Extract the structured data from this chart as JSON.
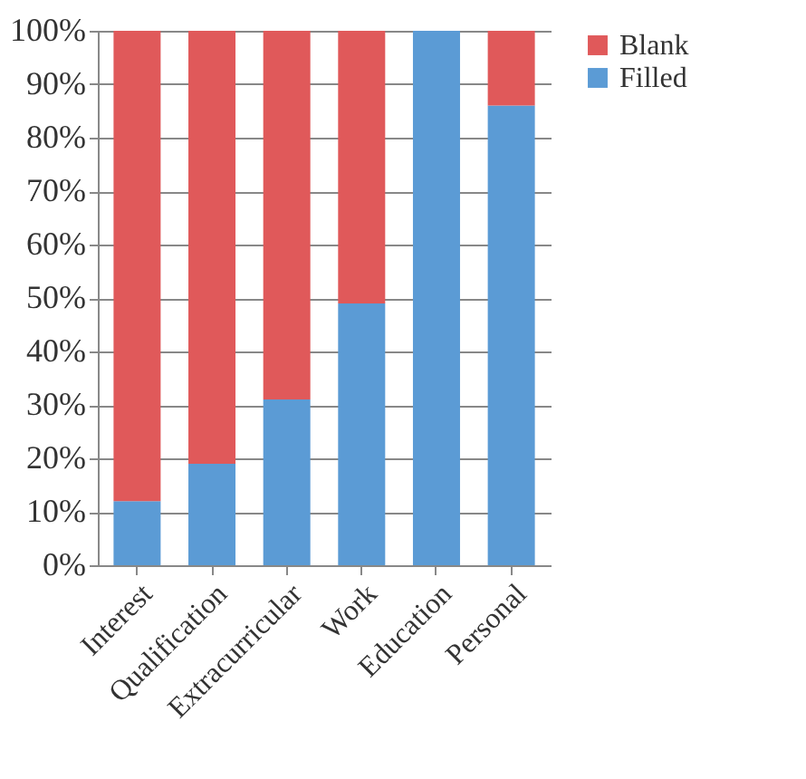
{
  "chart_data": {
    "type": "bar",
    "stacked": true,
    "categories": [
      "Interest",
      "Qualification",
      "Extracurricular",
      "Work",
      "Education",
      "Personal"
    ],
    "series": [
      {
        "name": "Filled",
        "color": "#5b9bd5",
        "values": [
          12,
          19,
          31,
          49,
          100,
          86
        ]
      },
      {
        "name": "Blank",
        "color": "#e0595a",
        "values": [
          88,
          81,
          69,
          51,
          0,
          14
        ]
      }
    ],
    "ylim": [
      0,
      100
    ],
    "yticks": [
      {
        "value": 0,
        "label": "0%"
      },
      {
        "value": 10,
        "label": "10%"
      },
      {
        "value": 20,
        "label": "20%"
      },
      {
        "value": 30,
        "label": "30%"
      },
      {
        "value": 40,
        "label": "40%"
      },
      {
        "value": 50,
        "label": "50%"
      },
      {
        "value": 60,
        "label": "60%"
      },
      {
        "value": 70,
        "label": "70%"
      },
      {
        "value": 80,
        "label": "80%"
      },
      {
        "value": 90,
        "label": "90%"
      },
      {
        "value": 100,
        "label": "100%"
      }
    ],
    "grid": "y",
    "legend": "right"
  }
}
